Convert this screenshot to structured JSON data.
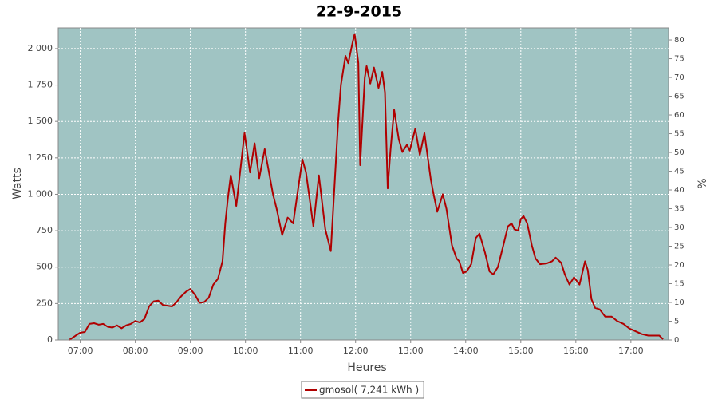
{
  "chart_data": {
    "type": "line",
    "title": "22-9-2015",
    "x_label": "Heures",
    "y_label": "Watts",
    "y2_label": "%",
    "xlim": [
      "06:36",
      "17:41"
    ],
    "xticks": [
      "07:00",
      "08:00",
      "09:00",
      "10:00",
      "11:00",
      "12:00",
      "13:00",
      "14:00",
      "15:00",
      "16:00",
      "17:00"
    ],
    "ylim": [
      0,
      2142
    ],
    "yticks": [
      0,
      250,
      500,
      750,
      {
        "value": 1000,
        "label": "1 000"
      },
      {
        "value": 1250,
        "label": "1 250"
      },
      {
        "value": 1500,
        "label": "1 500"
      },
      {
        "value": 1750,
        "label": "1 750"
      },
      {
        "value": 2000,
        "label": "2 000"
      }
    ],
    "y2lim": [
      0,
      83.2
    ],
    "y2ticks": [
      0,
      5,
      10,
      15,
      20,
      25,
      30,
      35,
      40,
      45,
      50,
      55,
      60,
      65,
      70,
      75,
      80
    ],
    "grid": true,
    "background": "#a0c4c3",
    "legend": "bottom",
    "x": [
      "06:48",
      "06:55",
      "07:00",
      "07:05",
      "07:10",
      "07:15",
      "07:20",
      "07:25",
      "07:30",
      "07:35",
      "07:40",
      "07:45",
      "07:50",
      "07:55",
      "08:00",
      "08:05",
      "08:10",
      "08:15",
      "08:20",
      "08:25",
      "08:30",
      "08:35",
      "08:40",
      "08:45",
      "08:50",
      "08:55",
      "09:00",
      "09:05",
      "09:10",
      "09:15",
      "09:20",
      "09:25",
      "09:30",
      "09:35",
      "09:38",
      "09:41",
      "09:44",
      "09:50",
      "09:59",
      "10:05",
      "10:10",
      "10:15",
      "10:21",
      "10:30",
      "10:34",
      "10:40",
      "10:46",
      "10:52",
      "11:02",
      "11:06",
      "11:14",
      "11:20",
      "11:27",
      "11:33",
      "11:41",
      "11:44",
      "11:49",
      "11:52",
      "11:57",
      "11:59",
      "12:03",
      "12:05",
      "12:10",
      "12:12",
      "12:16",
      "12:20",
      "12:25",
      "12:29",
      "12:32",
      "12:35",
      "12:38",
      "12:42",
      "12:47",
      "12:51",
      "12:56",
      "12:59",
      "13:05",
      "13:10",
      "13:15",
      "13:22",
      "13:25",
      "13:29",
      "13:35",
      "13:39",
      "13:45",
      "13:50",
      "13:53",
      "13:57",
      "14:01",
      "14:06",
      "14:11",
      "14:15",
      "14:21",
      "14:26",
      "14:30",
      "14:35",
      "14:41",
      "14:46",
      "14:50",
      "14:53",
      "14:57",
      "15:00",
      "15:03",
      "15:07",
      "15:12",
      "15:16",
      "15:21",
      "15:28",
      "15:34",
      "15:38",
      "15:44",
      "15:48",
      "15:53",
      "15:58",
      "16:04",
      "16:10",
      "16:13",
      "16:17",
      "16:21",
      "16:26",
      "16:32",
      "16:39",
      "16:45",
      "16:52",
      "16:58",
      "17:05",
      "17:12",
      "17:19",
      "17:31",
      "17:35"
    ],
    "series": [
      {
        "name": "gmosol( 7,241 kWh )",
        "color": "#b00000",
        "values": [
          0,
          30,
          50,
          55,
          110,
          115,
          105,
          110,
          90,
          85,
          100,
          80,
          100,
          110,
          130,
          120,
          145,
          230,
          265,
          270,
          240,
          235,
          230,
          260,
          300,
          330,
          350,
          310,
          255,
          260,
          290,
          380,
          420,
          540,
          800,
          980,
          1130,
          920,
          1420,
          1150,
          1350,
          1110,
          1310,
          1000,
          900,
          720,
          840,
          800,
          1240,
          1150,
          780,
          1130,
          760,
          610,
          1500,
          1750,
          1950,
          1900,
          2050,
          2100,
          1900,
          1200,
          1800,
          1880,
          1760,
          1870,
          1730,
          1840,
          1700,
          1040,
          1300,
          1580,
          1380,
          1290,
          1340,
          1300,
          1450,
          1270,
          1420,
          1100,
          1000,
          880,
          1000,
          900,
          650,
          560,
          540,
          460,
          470,
          520,
          700,
          730,
          600,
          470,
          450,
          500,
          650,
          780,
          800,
          760,
          750,
          830,
          850,
          800,
          650,
          560,
          520,
          525,
          540,
          565,
          530,
          450,
          380,
          430,
          380,
          540,
          480,
          280,
          220,
          210,
          160,
          160,
          130,
          110,
          80,
          60,
          40,
          30,
          30,
          5
        ]
      }
    ]
  }
}
